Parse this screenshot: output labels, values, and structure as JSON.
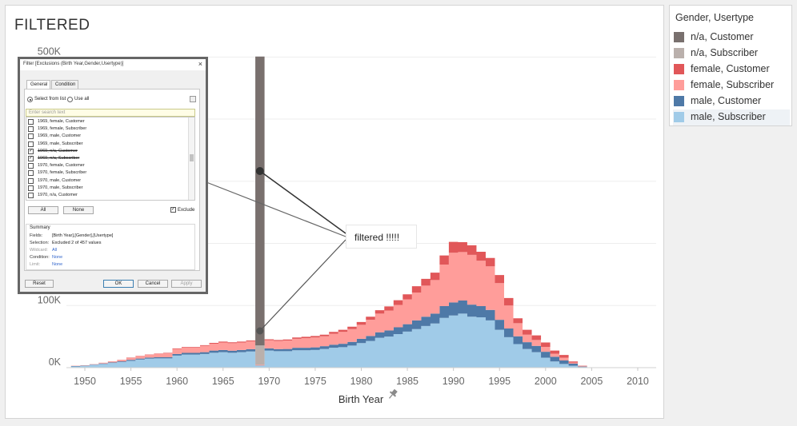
{
  "sheet": {
    "title": "FILTERED"
  },
  "chart_data": {
    "type": "area",
    "stacked": true,
    "step": true,
    "title": "FILTERED",
    "xlabel": "Birth Year",
    "ylabel": "",
    "xlim": [
      1948,
      2012
    ],
    "ylim": [
      0,
      530000
    ],
    "x_ticks": [
      1950,
      1955,
      1960,
      1965,
      1970,
      1975,
      1980,
      1985,
      1990,
      1995,
      2000,
      2005,
      2010
    ],
    "y_ticks": [
      {
        "value": 0,
        "label": "0K"
      },
      {
        "value": 100000,
        "label": "100K"
      },
      {
        "value": 500000,
        "label": "500K"
      }
    ],
    "grid": true,
    "legend_position": "right",
    "x": [
      1949,
      1950,
      1951,
      1952,
      1953,
      1954,
      1955,
      1956,
      1957,
      1958,
      1959,
      1960,
      1961,
      1962,
      1963,
      1964,
      1965,
      1966,
      1967,
      1968,
      1969,
      1970,
      1971,
      1972,
      1973,
      1974,
      1975,
      1976,
      1977,
      1978,
      1979,
      1980,
      1981,
      1982,
      1983,
      1984,
      1985,
      1986,
      1987,
      1988,
      1989,
      1990,
      1991,
      1992,
      1993,
      1994,
      1995,
      1996,
      1997,
      1998,
      1999,
      2000,
      2001,
      2002,
      2003,
      2004
    ],
    "series": [
      {
        "name": "male, Subscriber",
        "color": "#a0cbe8",
        "values": [
          2000,
          2700,
          4500,
          6000,
          7500,
          9000,
          11000,
          13000,
          14500,
          15000,
          15000,
          19500,
          21000,
          21000,
          22000,
          24000,
          25000,
          24000,
          25000,
          26000,
          3000,
          27500,
          26500,
          26500,
          28000,
          28000,
          28500,
          30000,
          32000,
          33000,
          35500,
          39500,
          43000,
          48000,
          50000,
          54000,
          58000,
          62000,
          67000,
          71000,
          80000,
          84000,
          87000,
          82000,
          81000,
          76000,
          61000,
          49000,
          38000,
          30000,
          25000,
          16000,
          10000,
          6000,
          3000,
          1000
        ]
      },
      {
        "name": "male, Customer",
        "color": "#4e79a7",
        "values": [
          500,
          500,
          500,
          800,
          1000,
          1200,
          1500,
          1700,
          1800,
          1800,
          1800,
          2500,
          2800,
          2800,
          3000,
          3500,
          3500,
          3400,
          3500,
          3800,
          500,
          3500,
          3400,
          3600,
          4000,
          4000,
          4100,
          4500,
          5000,
          5500,
          6000,
          7000,
          8000,
          9000,
          10000,
          11000,
          12000,
          14000,
          15000,
          16000,
          19000,
          21000,
          21000,
          19500,
          18000,
          17000,
          16000,
          14000,
          12500,
          11000,
          10000,
          9500,
          7500,
          5500,
          3500,
          800
        ]
      },
      {
        "name": "female, Subscriber",
        "color": "#ff9d9a",
        "values": [
          400,
          400,
          500,
          800,
          1200,
          2000,
          3000,
          3800,
          4500,
          5500,
          6500,
          8000,
          8500,
          8500,
          10000,
          11000,
          12000,
          12000,
          12000,
          12500,
          1000,
          13000,
          13000,
          13500,
          14500,
          15500,
          16000,
          16000,
          17500,
          19000,
          20500,
          22500,
          26000,
          30000,
          32000,
          36000,
          40000,
          45000,
          50000,
          54000,
          67000,
          80000,
          78000,
          80000,
          73000,
          70000,
          59000,
          37000,
          21000,
          12000,
          9500,
          8000,
          5000,
          4500,
          1500,
          500
        ]
      },
      {
        "name": "female, Customer",
        "color": "#e15759",
        "values": [
          100,
          100,
          100,
          200,
          300,
          300,
          500,
          500,
          500,
          600,
          700,
          1000,
          1000,
          1000,
          1200,
          1300,
          1500,
          1500,
          1500,
          1500,
          200,
          1700,
          1700,
          1800,
          2000,
          2200,
          2300,
          2500,
          3000,
          3500,
          4000,
          4500,
          5000,
          5500,
          6500,
          7500,
          8000,
          10000,
          11000,
          12000,
          14500,
          17500,
          16000,
          15500,
          14500,
          13500,
          13000,
          12000,
          8000,
          8000,
          7500,
          7000,
          5000,
          4500,
          2000,
          700
        ]
      },
      {
        "name": "n/a, Subscriber",
        "color": "#bab0ac",
        "values": [
          0,
          0,
          0,
          0,
          0,
          0,
          0,
          0,
          0,
          0,
          0,
          0,
          0,
          0,
          0,
          0,
          0,
          0,
          0,
          0,
          31000,
          0,
          0,
          0,
          0,
          0,
          0,
          0,
          0,
          0,
          0,
          0,
          0,
          0,
          0,
          0,
          0,
          0,
          0,
          0,
          0,
          0,
          0,
          0,
          0,
          0,
          0,
          0,
          0,
          0,
          0,
          0,
          0,
          0,
          0,
          0
        ]
      },
      {
        "name": "n/a, Customer",
        "color": "#79706e",
        "values": [
          0,
          0,
          0,
          0,
          0,
          0,
          0,
          0,
          0,
          0,
          0,
          0,
          0,
          0,
          0,
          0,
          0,
          0,
          0,
          0,
          465000,
          0,
          0,
          0,
          0,
          0,
          0,
          0,
          0,
          0,
          0,
          0,
          0,
          0,
          0,
          0,
          0,
          0,
          0,
          0,
          0,
          0,
          0,
          0,
          0,
          0,
          0,
          0,
          0,
          0,
          0,
          0,
          0,
          0,
          0,
          0
        ]
      }
    ]
  },
  "legend": {
    "title": "Gender, Usertype",
    "items": [
      {
        "label": "n/a, Customer",
        "color": "#79706e"
      },
      {
        "label": "n/a, Subscriber",
        "color": "#bab0ac"
      },
      {
        "label": "female, Customer",
        "color": "#e15759"
      },
      {
        "label": "female, Subscriber",
        "color": "#ff9d9a"
      },
      {
        "label": "male, Customer",
        "color": "#4e79a7"
      },
      {
        "label": "male, Subscriber",
        "color": "#a0cbe8"
      }
    ]
  },
  "annotation": {
    "text": "filtered !!!!!"
  },
  "filter_dialog": {
    "title": "Filter [Exclusions (Birth Year,Gender,Usertype)]",
    "close": "×",
    "tabs": [
      "General",
      "Condition"
    ],
    "radio_select_label": "Select from list",
    "radio_useall_label": "Use all",
    "search_placeholder": "Enter search text",
    "items": [
      {
        "label": "1969, female, Customer",
        "checked": false,
        "strike": false
      },
      {
        "label": "1969, female, Subscriber",
        "checked": false,
        "strike": false
      },
      {
        "label": "1969, male, Customer",
        "checked": false,
        "strike": false
      },
      {
        "label": "1969, male, Subscriber",
        "checked": false,
        "strike": false
      },
      {
        "label": "1969, n/a, Customer",
        "checked": true,
        "strike": true
      },
      {
        "label": "1969, n/a, Subscriber",
        "checked": true,
        "strike": true
      },
      {
        "label": "1970, female, Customer",
        "checked": false,
        "strike": false
      },
      {
        "label": "1970, female, Subscriber",
        "checked": false,
        "strike": false
      },
      {
        "label": "1970, male, Customer",
        "checked": false,
        "strike": false
      },
      {
        "label": "1970, male, Subscriber",
        "checked": false,
        "strike": false
      },
      {
        "label": "1970, n/a, Customer",
        "checked": false,
        "strike": false
      }
    ],
    "btn_all": "All",
    "btn_none": "None",
    "exclude_label": "Exclude",
    "summary_title": "Summary",
    "summary": {
      "fields_key": "Fields:",
      "fields_val": "[Birth Year],[Gender],[Usertype]",
      "selection_key": "Selection:",
      "selection_val": "Excluded 2 of 457 values",
      "wildcard_key": "Wildcard:",
      "wildcard_val": "All",
      "condition_key": "Condition:",
      "condition_val": "None",
      "limit_key": "Limit:",
      "limit_val": "None"
    },
    "btn_reset": "Reset",
    "btn_ok": "OK",
    "btn_cancel": "Cancel",
    "btn_apply": "Apply"
  }
}
